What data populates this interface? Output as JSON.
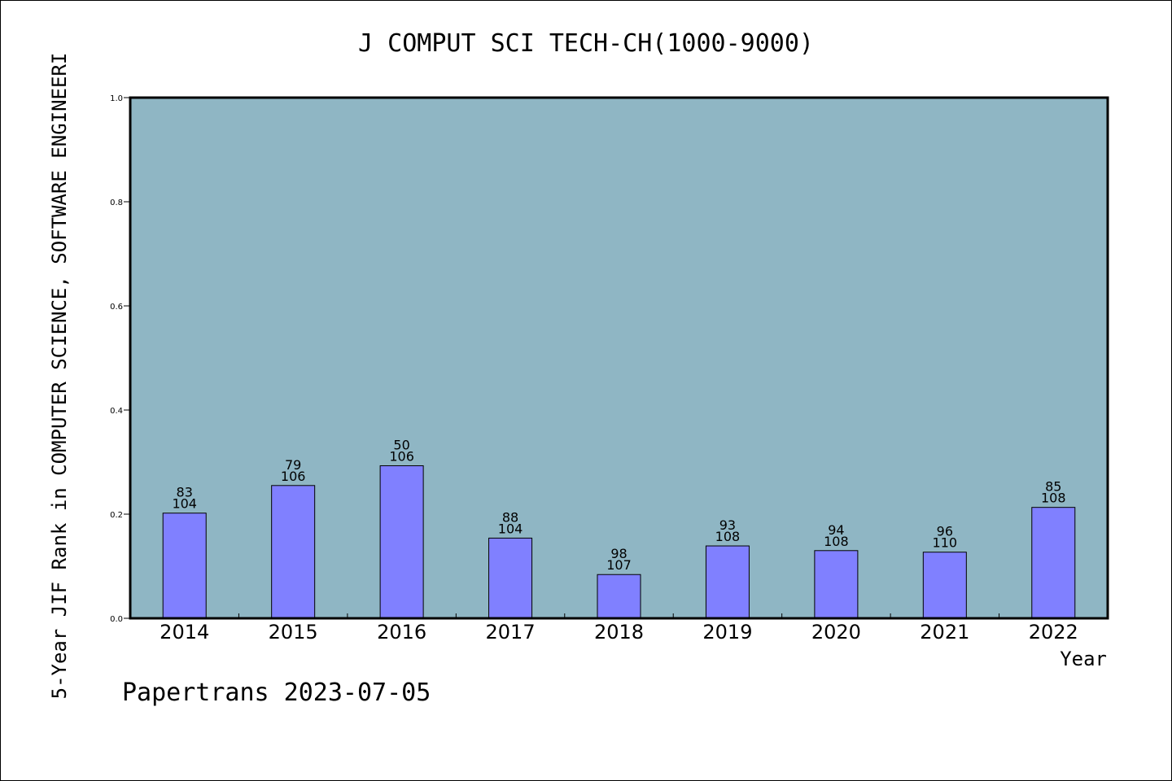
{
  "chart_data": {
    "type": "bar",
    "title": "J COMPUT SCI TECH-CH(1000-9000)",
    "xlabel": "Year",
    "ylabel": "5-Year JIF Rank in COMPUTER SCIENCE, SOFTWARE ENGINEERI",
    "categories": [
      "2014",
      "2015",
      "2016",
      "2017",
      "2018",
      "2019",
      "2020",
      "2021",
      "2022"
    ],
    "values": [
      0.202,
      0.255,
      0.293,
      0.154,
      0.084,
      0.139,
      0.13,
      0.127,
      0.213
    ],
    "bar_labels_top": [
      "83",
      "79",
      "50",
      "88",
      "98",
      "93",
      "94",
      "96",
      "85"
    ],
    "bar_labels_bottom": [
      "104",
      "106",
      "106",
      "104",
      "107",
      "108",
      "108",
      "110",
      "108"
    ],
    "ylim": [
      0,
      1.0
    ],
    "yticks": [
      "0.0",
      "0.2",
      "0.4",
      "0.6",
      "0.8",
      "1.0"
    ],
    "grid": false,
    "colors": {
      "plot_background": "#8fb6c4",
      "bar_fill": "#8080ff",
      "bar_stroke": "#000000",
      "axis": "#000000"
    }
  },
  "footer": "Papertrans 2023-07-05"
}
